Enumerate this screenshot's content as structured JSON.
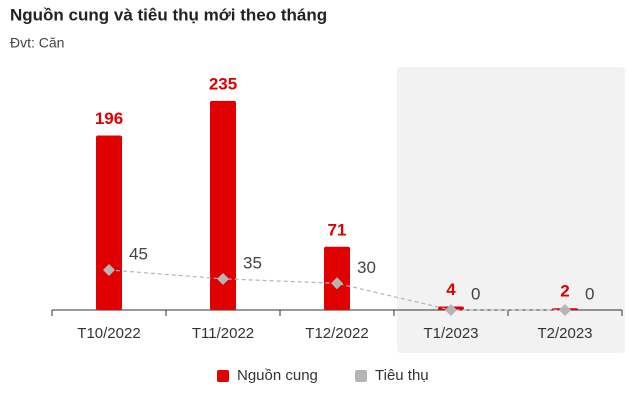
{
  "chart_data": {
    "type": "bar",
    "title": "Nguồn cung và tiêu thụ mới theo tháng",
    "subtitle": "Đvt: Căn",
    "categories": [
      "T10/2022",
      "T11/2022",
      "T12/2022",
      "T1/2023",
      "T2/2023"
    ],
    "series": [
      {
        "name": "Nguồn cung",
        "type": "bar",
        "color": "#e00000",
        "values": [
          196,
          235,
          71,
          4,
          2
        ]
      },
      {
        "name": "Tiêu thụ",
        "type": "line",
        "color": "#b5b5b5",
        "values": [
          45,
          35,
          30,
          0,
          0
        ]
      }
    ]
  }
}
